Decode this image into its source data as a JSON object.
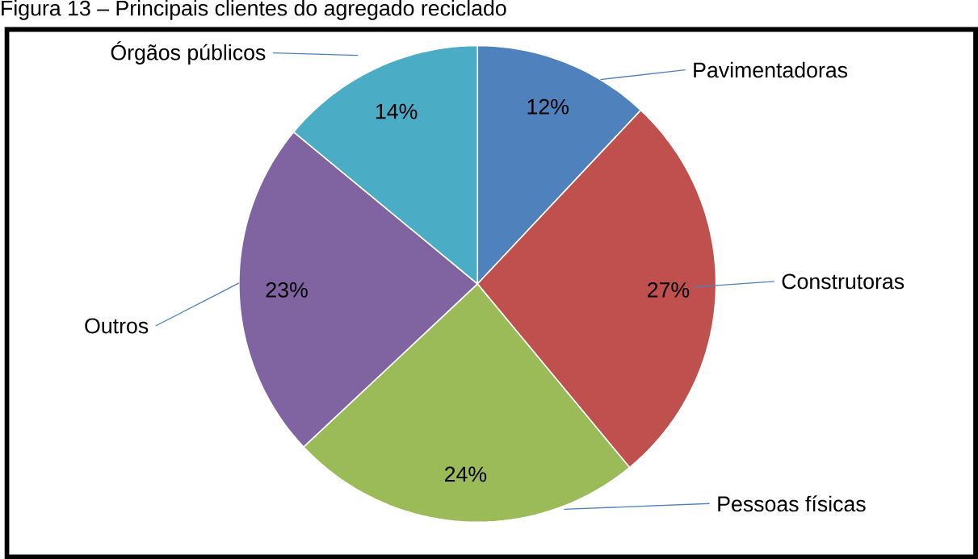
{
  "chart_data": {
    "type": "pie",
    "title": "Figura 13 – Principais clientes do agregado reciclado",
    "categories": [
      "Pavimentadoras",
      "Construtoras",
      "Pessoas físicas",
      "Outros",
      "Órgãos públicos"
    ],
    "values": [
      12,
      27,
      24,
      23,
      14
    ],
    "value_labels": [
      "12%",
      "27%",
      "24%",
      "23%",
      "14%"
    ],
    "colors": [
      "#4f81bd",
      "#c0504d",
      "#9bbb59",
      "#8064a2",
      "#4bacc6"
    ]
  }
}
